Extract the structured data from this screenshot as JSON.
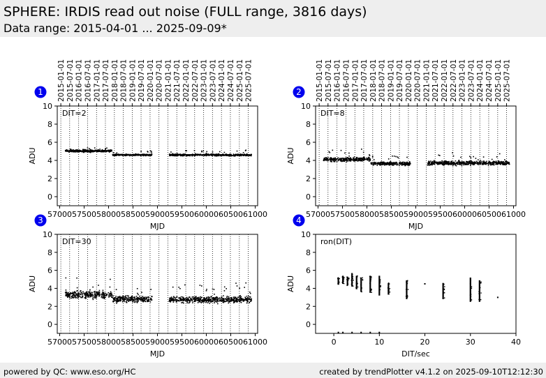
{
  "title": "SPHERE: IRDIS read out noise (FULL range, 3816 days)",
  "subtitle": "Data range: 2015-04-01 ... 2025-09-09*",
  "footer": {
    "left": "powered by QC: www.eso.org/HC",
    "right": "created by trendPlotter v4.1.2 on 2025-09-10T12:12:30"
  },
  "colors": {
    "header_bg": "#eeeeee",
    "badge": "#0000ee",
    "points": "#000000"
  },
  "date_ticks": [
    "2015-01-01",
    "2015-07-01",
    "2016-01-01",
    "2016-07-01",
    "2017-01-01",
    "2017-07-01",
    "2018-01-01",
    "2018-07-01",
    "2019-01-01",
    "2019-07-01",
    "2020-01-01",
    "2020-07-01",
    "2021-01-01",
    "2021-07-01",
    "2022-01-01",
    "2022-07-01",
    "2023-01-01",
    "2023-07-01",
    "2024-01-01",
    "2024-07-01",
    "2025-01-01",
    "2025-07-01"
  ],
  "chart_data": [
    {
      "id": 1,
      "badge": "1",
      "type": "scatter",
      "label": "DIT=2",
      "xlabel": "MJD",
      "ylabel": "ADU",
      "xlim": [
        56950,
        61050
      ],
      "ylim": [
        -1,
        10
      ],
      "xticks": [
        57000,
        57500,
        58000,
        58500,
        59000,
        59500,
        60000,
        60500,
        61000
      ],
      "yticks": [
        0,
        2,
        4,
        6,
        8,
        10
      ],
      "top_axis": "date_ticks",
      "segments": [
        {
          "x_start": 57113,
          "x_end": 58070,
          "y_mean": 5.05,
          "y_spread": 0.12
        },
        {
          "x_start": 58080,
          "x_end": 58890,
          "y_mean": 4.6,
          "y_spread": 0.09
        },
        {
          "x_start": 59240,
          "x_end": 60925,
          "y_mean": 4.6,
          "y_spread": 0.1
        }
      ]
    },
    {
      "id": 2,
      "badge": "2",
      "type": "scatter",
      "label": "DIT=8",
      "xlabel": "MJD",
      "ylabel": "ADU",
      "xlim": [
        56950,
        61050
      ],
      "ylim": [
        -1,
        10
      ],
      "xticks": [
        57000,
        57500,
        58000,
        58500,
        59000,
        59500,
        60000,
        60500,
        61000
      ],
      "yticks": [
        0,
        2,
        4,
        6,
        8,
        10
      ],
      "top_axis": "date_ticks",
      "segments": [
        {
          "x_start": 57113,
          "x_end": 58070,
          "y_mean": 4.1,
          "y_spread": 0.22
        },
        {
          "x_start": 58080,
          "x_end": 58890,
          "y_mean": 3.65,
          "y_spread": 0.18
        },
        {
          "x_start": 59240,
          "x_end": 60925,
          "y_mean": 3.7,
          "y_spread": 0.22
        }
      ]
    },
    {
      "id": 3,
      "badge": "3",
      "type": "scatter",
      "label": "DIT=30",
      "xlabel": "MJD",
      "ylabel": "ADU",
      "xlim": [
        56950,
        61050
      ],
      "ylim": [
        -1,
        10
      ],
      "xticks": [
        57000,
        57500,
        58000,
        58500,
        59000,
        59500,
        60000,
        60500,
        61000
      ],
      "yticks": [
        0,
        2,
        4,
        6,
        8,
        10
      ],
      "top_axis": null,
      "segments": [
        {
          "x_start": 57113,
          "x_end": 58070,
          "y_mean": 3.3,
          "y_spread": 0.4
        },
        {
          "x_start": 58080,
          "x_end": 58890,
          "y_mean": 2.8,
          "y_spread": 0.35
        },
        {
          "x_start": 59240,
          "x_end": 60925,
          "y_mean": 2.75,
          "y_spread": 0.35
        }
      ]
    },
    {
      "id": 4,
      "badge": "4",
      "type": "scatter",
      "label": "ron(DIT)",
      "xlabel": "DIT/sec",
      "ylabel": "ADU",
      "xlim": [
        -4,
        40
      ],
      "ylim": [
        -1,
        10
      ],
      "xticks": [
        0,
        10,
        20,
        30,
        40
      ],
      "yticks": [
        0,
        2,
        4,
        6,
        8,
        10
      ],
      "top_axis": null,
      "columns": [
        {
          "x": 1,
          "y_min": 4.4,
          "y_max": 5.2
        },
        {
          "x": 2,
          "y_min": 4.5,
          "y_max": 5.4
        },
        {
          "x": 3,
          "y_min": 4.3,
          "y_max": 5.3
        },
        {
          "x": 4,
          "y_min": 4.2,
          "y_max": 5.7
        },
        {
          "x": 5,
          "y_min": 3.9,
          "y_max": 5.4
        },
        {
          "x": 6,
          "y_min": 3.6,
          "y_max": 5.2
        },
        {
          "x": 8,
          "y_min": 3.5,
          "y_max": 5.4
        },
        {
          "x": 10,
          "y_min": 3.2,
          "y_max": 5.4
        },
        {
          "x": 12,
          "y_min": 3.3,
          "y_max": 4.6
        },
        {
          "x": 16,
          "y_min": 2.8,
          "y_max": 4.9
        },
        {
          "x": 24,
          "y_min": 2.8,
          "y_max": 4.6
        },
        {
          "x": 30,
          "y_min": 2.5,
          "y_max": 5.2
        },
        {
          "x": 32,
          "y_min": 2.5,
          "y_max": 4.9
        }
      ],
      "outliers": [
        {
          "x": 20,
          "y": 4.5
        },
        {
          "x": 36,
          "y": 3.0
        },
        {
          "x": 1,
          "y": -0.9
        },
        {
          "x": 2,
          "y": -0.9
        },
        {
          "x": 4,
          "y": -0.9
        },
        {
          "x": 6,
          "y": -0.9
        },
        {
          "x": 8,
          "y": -0.9
        },
        {
          "x": 10,
          "y": -0.9
        }
      ]
    }
  ]
}
